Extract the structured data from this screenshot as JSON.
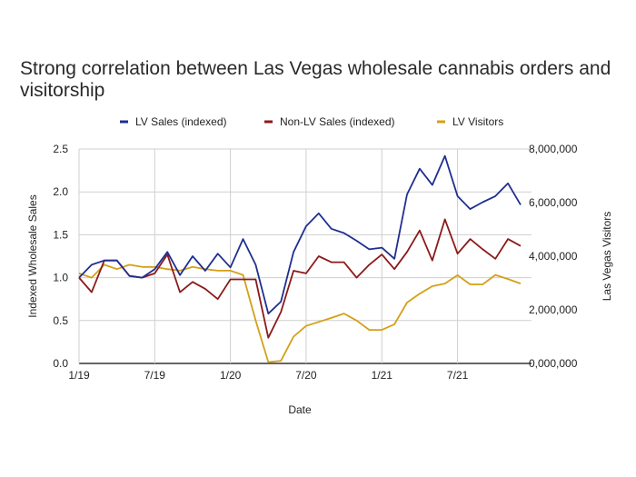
{
  "chart_data": {
    "type": "line",
    "title": "Strong correlation between Las Vegas wholesale cannabis orders and visitorship",
    "xlabel": "Date",
    "ylabel": "Indexed Wholesale Sales",
    "y2label": "Las Vegas Visitors",
    "ylim": [
      0,
      2.5
    ],
    "y2lim": [
      0,
      8000000
    ],
    "yticks": [
      "0.0",
      "0.5",
      "1.0",
      "1.5",
      "2.0",
      "2.5"
    ],
    "y2ticks": [
      "0,000,000",
      "2,000,000",
      "4,000,000",
      "6,000,000",
      "8,000,000"
    ],
    "xticks": [
      {
        "label": "1/19",
        "month_index": 0
      },
      {
        "label": "7/19",
        "month_index": 6
      },
      {
        "label": "1/20",
        "month_index": 12
      },
      {
        "label": "7/20",
        "month_index": 18
      },
      {
        "label": "1/21",
        "month_index": 24
      },
      {
        "label": "7/21",
        "month_index": 30
      }
    ],
    "x": [
      "2019-01",
      "2019-02",
      "2019-03",
      "2019-04",
      "2019-05",
      "2019-06",
      "2019-07",
      "2019-08",
      "2019-09",
      "2019-10",
      "2019-11",
      "2019-12",
      "2020-01",
      "2020-02",
      "2020-03",
      "2020-04",
      "2020-05",
      "2020-06",
      "2020-07",
      "2020-08",
      "2020-09",
      "2020-10",
      "2020-11",
      "2020-12",
      "2021-01",
      "2021-02",
      "2021-03",
      "2021-04",
      "2021-05",
      "2021-06",
      "2021-07",
      "2021-08",
      "2021-09",
      "2021-10",
      "2021-11",
      "2021-12"
    ],
    "grid": true,
    "legend": "top",
    "series": [
      {
        "name": "LV Sales (indexed)",
        "axis": "left",
        "color": "#1f2f8f",
        "values": [
          1.0,
          1.15,
          1.2,
          1.2,
          1.02,
          1.0,
          1.1,
          1.3,
          1.03,
          1.25,
          1.08,
          1.28,
          1.12,
          1.45,
          1.15,
          0.58,
          0.72,
          1.3,
          1.6,
          1.75,
          1.57,
          1.52,
          1.43,
          1.33,
          1.35,
          1.22,
          1.97,
          2.27,
          2.08,
          2.42,
          1.95,
          1.8,
          1.88,
          1.95,
          2.1,
          1.85
        ]
      },
      {
        "name": "Non-LV Sales (indexed)",
        "axis": "left",
        "color": "#8b1a1a",
        "values": [
          1.0,
          0.83,
          1.2,
          1.2,
          1.02,
          1.0,
          1.05,
          1.27,
          0.83,
          0.95,
          0.87,
          0.75,
          0.98,
          0.98,
          0.98,
          0.3,
          0.6,
          1.08,
          1.05,
          1.25,
          1.18,
          1.18,
          1.0,
          1.15,
          1.27,
          1.1,
          1.3,
          1.55,
          1.2,
          1.68,
          1.28,
          1.45,
          1.33,
          1.22,
          1.45,
          1.37
        ]
      },
      {
        "name": "LV Visitors",
        "axis": "right",
        "color": "#d4a017",
        "values": [
          3360000,
          3200000,
          3680000,
          3520000,
          3680000,
          3600000,
          3600000,
          3520000,
          3460000,
          3600000,
          3520000,
          3460000,
          3460000,
          3300000,
          1600000,
          50000,
          100000,
          1000000,
          1400000,
          1550000,
          1700000,
          1860000,
          1600000,
          1250000,
          1250000,
          1460000,
          2270000,
          2600000,
          2880000,
          2980000,
          3290000,
          2950000,
          2950000,
          3300000,
          3150000,
          2980000
        ]
      }
    ]
  }
}
